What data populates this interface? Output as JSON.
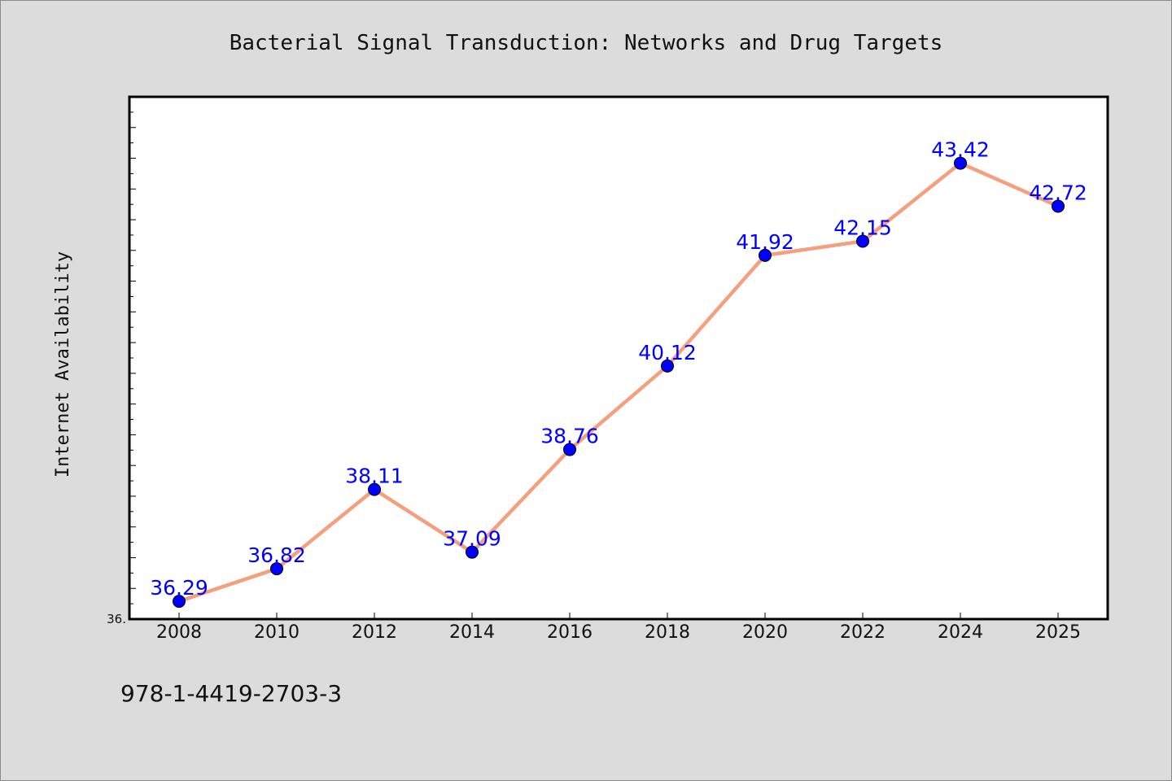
{
  "chart_data": {
    "type": "line",
    "title": "Bacterial Signal Transduction: Networks and Drug Targets",
    "xlabel": "",
    "ylabel": "Internet Availability",
    "categories": [
      "2008",
      "2010",
      "2012",
      "2014",
      "2016",
      "2018",
      "2020",
      "2022",
      "2024",
      "2025"
    ],
    "series": [
      {
        "values": [
          36.29,
          36.82,
          38.11,
          37.09,
          38.76,
          40.12,
          41.92,
          42.15,
          43.42,
          42.72
        ]
      }
    ],
    "data_labels": [
      "36.29",
      "36.82",
      "38.11",
      "37.09",
      "38.76",
      "40.12",
      "41.92",
      "42.15",
      "43.42",
      "42.72"
    ],
    "ylim": [
      36.0,
      44.5
    ],
    "y_tick_labels": [
      "36."
    ],
    "grid": false,
    "legend": "none",
    "colors": {
      "line": "#f4a07f",
      "marker": "#0000ff",
      "label": "#0000ff",
      "background": "#dcdcdc",
      "plot_background": "#ffffff"
    }
  },
  "footer": {
    "isbn": "978-1-4419-2703-3"
  }
}
